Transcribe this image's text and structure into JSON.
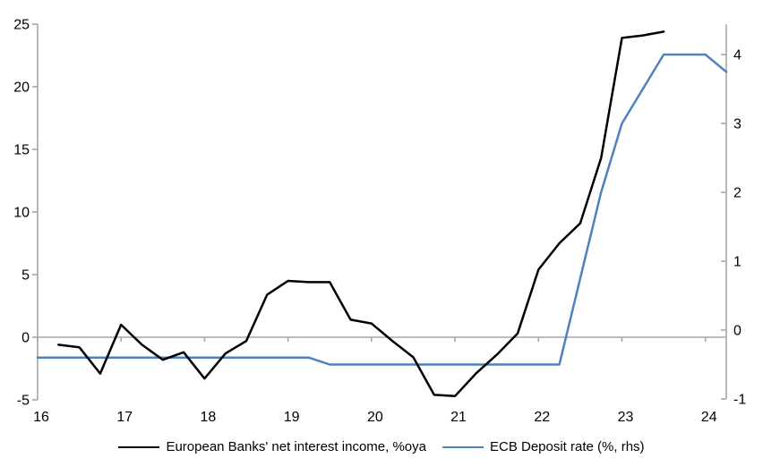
{
  "chart_data": {
    "type": "line",
    "title": "",
    "xlabel": "",
    "ylabel_left": "",
    "ylabel_right": "",
    "grid": "zero-line-only",
    "legend_position": "bottom-center",
    "axis_color": "#a6a6a6",
    "text_color": "#000000",
    "x_axis": {
      "min": 16,
      "max": 24.25,
      "ticks": [
        16,
        17,
        18,
        19,
        20,
        21,
        22,
        23,
        24
      ]
    },
    "left_axis": {
      "min": -5,
      "max": 25,
      "tick_interval": 5,
      "ticks": [
        25,
        20,
        15,
        10,
        5,
        0,
        -5
      ]
    },
    "right_axis": {
      "min": -1,
      "max": 4.4,
      "tick_interval": 1,
      "ticks": [
        4,
        3,
        2,
        1,
        0,
        -1
      ]
    },
    "series": [
      {
        "name": "European Banks' net interest income, %oya",
        "axis": "left",
        "color": "#000000",
        "x": [
          16.25,
          16.5,
          16.75,
          17.0,
          17.25,
          17.5,
          17.75,
          18.0,
          18.25,
          18.5,
          18.75,
          19.0,
          19.25,
          19.5,
          19.75,
          20.0,
          20.25,
          20.5,
          20.75,
          21.0,
          21.25,
          21.5,
          21.75,
          22.0,
          22.25,
          22.5,
          22.75,
          23.0,
          23.25,
          23.5
        ],
        "values": [
          -0.6,
          -0.8,
          -2.9,
          1.0,
          -0.6,
          -1.8,
          -1.2,
          -3.3,
          -1.3,
          -0.3,
          3.4,
          4.5,
          4.4,
          4.4,
          1.4,
          1.1,
          -0.3,
          -1.6,
          -4.6,
          -4.7,
          -2.9,
          -1.4,
          0.3,
          5.4,
          7.5,
          9.1,
          14.3,
          23.9,
          24.1,
          24.4
        ]
      },
      {
        "name": "ECB Deposit rate (%, rhs)",
        "axis": "right",
        "color": "#4f81bd",
        "x": [
          16.0,
          16.25,
          16.5,
          16.75,
          17.0,
          17.25,
          17.5,
          17.75,
          18.0,
          18.25,
          18.5,
          18.75,
          19.0,
          19.25,
          19.5,
          19.75,
          20.0,
          20.25,
          20.5,
          20.75,
          21.0,
          21.25,
          21.5,
          21.75,
          22.0,
          22.25,
          22.5,
          22.75,
          23.0,
          23.25,
          23.5,
          23.75,
          24.0,
          24.25
        ],
        "values": [
          -0.4,
          -0.4,
          -0.4,
          -0.4,
          -0.4,
          -0.4,
          -0.4,
          -0.4,
          -0.4,
          -0.4,
          -0.4,
          -0.4,
          -0.4,
          -0.4,
          -0.5,
          -0.5,
          -0.5,
          -0.5,
          -0.5,
          -0.5,
          -0.5,
          -0.5,
          -0.5,
          -0.5,
          -0.5,
          -0.5,
          0.75,
          2.0,
          3.0,
          3.5,
          4.0,
          4.0,
          4.0,
          3.75
        ]
      }
    ]
  }
}
